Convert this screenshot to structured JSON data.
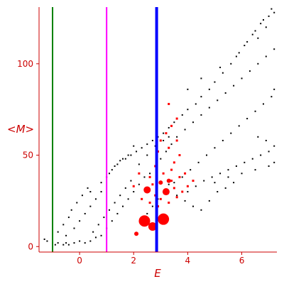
{
  "chart_data": {
    "type": "scatter",
    "title": "",
    "xlabel": "E",
    "ylabel": "<M>",
    "xlim": [
      -1.5,
      7.3
    ],
    "ylim": [
      -3,
      131
    ],
    "x_ticks": [
      0,
      2,
      4,
      6
    ],
    "y_ticks": [
      0,
      50,
      100
    ],
    "grid": false,
    "colors": {
      "axis": "#cc0000",
      "background_points": "#000000",
      "highlight_points": "#ff0000",
      "line_green": "#008000",
      "line_magenta": "#ff00ff",
      "line_blue": "#0000ff"
    },
    "vertical_lines": [
      {
        "name": "",
        "x": -1.0,
        "color": "#008000"
      },
      {
        "name": "",
        "x": 1.0,
        "color": "#ff00ff"
      },
      {
        "name": "",
        "x": 2.85,
        "color": "#0000ff"
      }
    ],
    "background_series": {
      "description": "dense band of small black points",
      "points": [
        [
          -1.3,
          4
        ],
        [
          -1.2,
          3
        ],
        [
          -1.0,
          2
        ],
        [
          -0.9,
          1
        ],
        [
          -0.8,
          2
        ],
        [
          -0.6,
          1
        ],
        [
          -0.5,
          2
        ],
        [
          -0.4,
          1
        ],
        [
          -0.2,
          2
        ],
        [
          0.0,
          3
        ],
        [
          0.2,
          2
        ],
        [
          0.4,
          3
        ],
        [
          0.6,
          5
        ],
        [
          0.8,
          6
        ],
        [
          -0.8,
          8
        ],
        [
          -0.6,
          12
        ],
        [
          -0.4,
          16
        ],
        [
          -0.3,
          20
        ],
        [
          -0.1,
          24
        ],
        [
          0.1,
          28
        ],
        [
          0.3,
          32
        ],
        [
          0.4,
          30
        ],
        [
          -0.5,
          6
        ],
        [
          -0.2,
          10
        ],
        [
          0.0,
          14
        ],
        [
          0.2,
          18
        ],
        [
          0.4,
          22
        ],
        [
          0.6,
          26
        ],
        [
          0.8,
          30
        ],
        [
          0.5,
          8
        ],
        [
          0.7,
          12
        ],
        [
          0.9,
          16
        ],
        [
          1.1,
          20
        ],
        [
          1.3,
          24
        ],
        [
          1.5,
          28
        ],
        [
          1.7,
          32
        ],
        [
          1.9,
          36
        ],
        [
          1.0,
          10
        ],
        [
          1.2,
          14
        ],
        [
          1.4,
          18
        ],
        [
          1.6,
          22
        ],
        [
          1.8,
          26
        ],
        [
          2.0,
          30
        ],
        [
          2.2,
          34
        ],
        [
          2.4,
          38
        ],
        [
          1.1,
          40
        ],
        [
          1.3,
          44
        ],
        [
          1.5,
          47
        ],
        [
          1.7,
          48
        ],
        [
          1.9,
          50
        ],
        [
          2.1,
          52
        ],
        [
          2.3,
          54
        ],
        [
          2.5,
          56
        ],
        [
          2.7,
          58
        ],
        [
          2.9,
          60
        ],
        [
          3.1,
          62
        ],
        [
          3.3,
          65
        ],
        [
          3.5,
          68
        ],
        [
          3.8,
          72
        ],
        [
          4.0,
          75
        ],
        [
          4.3,
          78
        ],
        [
          4.5,
          82
        ],
        [
          4.8,
          86
        ],
        [
          5.0,
          90
        ],
        [
          5.3,
          95
        ],
        [
          5.6,
          100
        ],
        [
          5.9,
          106
        ],
        [
          6.2,
          112
        ],
        [
          6.5,
          118
        ],
        [
          6.8,
          124
        ],
        [
          7.1,
          130
        ],
        [
          7.2,
          128
        ],
        [
          6.9,
          120
        ],
        [
          6.6,
          114
        ],
        [
          2.6,
          40
        ],
        [
          2.8,
          44
        ],
        [
          3.0,
          48
        ],
        [
          3.2,
          52
        ],
        [
          3.4,
          56
        ],
        [
          3.6,
          60
        ],
        [
          3.9,
          64
        ],
        [
          4.2,
          68
        ],
        [
          4.5,
          72
        ],
        [
          4.8,
          76
        ],
        [
          5.1,
          80
        ],
        [
          5.4,
          84
        ],
        [
          5.7,
          88
        ],
        [
          6.0,
          92
        ],
        [
          6.3,
          96
        ],
        [
          6.6,
          100
        ],
        [
          6.9,
          104
        ],
        [
          7.2,
          108
        ],
        [
          3.5,
          35
        ],
        [
          3.8,
          38
        ],
        [
          4.1,
          42
        ],
        [
          4.4,
          46
        ],
        [
          4.7,
          50
        ],
        [
          5.0,
          54
        ],
        [
          5.3,
          58
        ],
        [
          5.6,
          62
        ],
        [
          5.9,
          66
        ],
        [
          6.2,
          70
        ],
        [
          6.5,
          74
        ],
        [
          6.8,
          78
        ],
        [
          7.1,
          82
        ],
        [
          7.2,
          86
        ],
        [
          4.0,
          30
        ],
        [
          4.3,
          33
        ],
        [
          4.6,
          36
        ],
        [
          4.9,
          38
        ],
        [
          5.2,
          40
        ],
        [
          5.5,
          42
        ],
        [
          5.8,
          44
        ],
        [
          6.1,
          46
        ],
        [
          6.4,
          48
        ],
        [
          6.7,
          50
        ],
        [
          7.0,
          52
        ],
        [
          7.2,
          55
        ],
        [
          6.9,
          58
        ],
        [
          6.6,
          60
        ],
        [
          5.0,
          35
        ],
        [
          5.5,
          38
        ],
        [
          6.0,
          40
        ],
        [
          6.5,
          42
        ],
        [
          7.0,
          44
        ],
        [
          7.2,
          46
        ],
        [
          2.2,
          45
        ],
        [
          2.5,
          50
        ],
        [
          2.8,
          55
        ],
        [
          3.1,
          58
        ],
        [
          3.3,
          60
        ],
        [
          4.0,
          86
        ],
        [
          4.5,
          92
        ],
        [
          5.2,
          98
        ],
        [
          5.8,
          104
        ],
        [
          6.1,
          110
        ],
        [
          6.4,
          116
        ],
        [
          6.7,
          122
        ],
        [
          7.0,
          126
        ],
        [
          0.8,
          35
        ],
        [
          1.0,
          38
        ],
        [
          1.2,
          42
        ],
        [
          1.4,
          45
        ],
        [
          1.6,
          48
        ],
        [
          1.8,
          50
        ],
        [
          2.0,
          55
        ],
        [
          2.5,
          18
        ],
        [
          2.7,
          22
        ],
        [
          2.9,
          26
        ],
        [
          3.1,
          30
        ],
        [
          3.3,
          34
        ],
        [
          3.6,
          28
        ],
        [
          3.9,
          25
        ],
        [
          4.2,
          22
        ],
        [
          4.5,
          20
        ],
        [
          4.8,
          25
        ],
        [
          5.1,
          30
        ],
        [
          5.4,
          32
        ],
        [
          5.7,
          35
        ]
      ]
    },
    "highlight_series": {
      "description": "red points, some drawn as large circles",
      "points": [
        [
          2.1,
          7,
          3
        ],
        [
          2.4,
          14,
          8
        ],
        [
          2.7,
          11,
          6
        ],
        [
          3.1,
          15,
          8
        ],
        [
          2.5,
          31,
          5
        ],
        [
          3.2,
          30,
          5
        ],
        [
          3.0,
          35,
          3
        ],
        [
          3.3,
          36,
          3
        ],
        [
          3.1,
          40,
          2
        ],
        [
          3.4,
          42,
          2
        ],
        [
          2.6,
          38,
          2
        ],
        [
          2.8,
          44,
          2
        ],
        [
          3.5,
          46,
          2
        ],
        [
          3.7,
          50,
          2
        ],
        [
          3.3,
          54,
          2
        ],
        [
          3.6,
          58,
          2
        ],
        [
          3.2,
          62,
          2
        ],
        [
          3.4,
          66,
          2
        ],
        [
          3.6,
          70,
          2
        ],
        [
          3.3,
          78,
          2
        ],
        [
          2.9,
          52,
          2
        ],
        [
          3.0,
          58,
          2
        ],
        [
          2.3,
          26,
          2
        ],
        [
          2.6,
          24,
          2
        ],
        [
          2.9,
          22,
          2
        ],
        [
          3.3,
          24,
          2
        ],
        [
          3.6,
          27,
          2
        ],
        [
          3.8,
          30,
          2
        ],
        [
          4.0,
          33,
          2
        ],
        [
          4.2,
          36,
          2
        ],
        [
          3.9,
          40,
          2
        ],
        [
          3.7,
          38,
          2
        ],
        [
          2.2,
          40,
          2
        ],
        [
          2.0,
          33,
          2
        ],
        [
          2.8,
          28,
          2
        ],
        [
          3.0,
          26,
          2
        ],
        [
          3.5,
          32,
          2
        ],
        [
          3.4,
          36,
          2
        ],
        [
          2.7,
          34,
          2
        ]
      ]
    }
  }
}
